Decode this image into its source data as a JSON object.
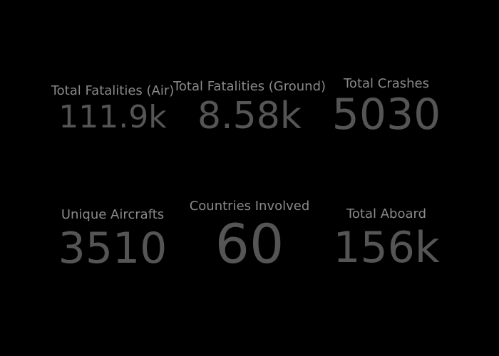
{
  "dashboard": {
    "metrics": [
      {
        "title": "Total Fatalities (Air)",
        "value": "111.9k"
      },
      {
        "title": "Total Fatalities (Ground)",
        "value": "8.58k"
      },
      {
        "title": "Total Crashes",
        "value": "5030"
      },
      {
        "title": "Unique Aircrafts",
        "value": "3510"
      },
      {
        "title": "Countries Involved",
        "value": "60"
      },
      {
        "title": "Total Aboard",
        "value": "156k"
      }
    ]
  },
  "colors": {
    "background": "#000000",
    "title_text": "#8a8a8a",
    "value_text": "#555555"
  }
}
